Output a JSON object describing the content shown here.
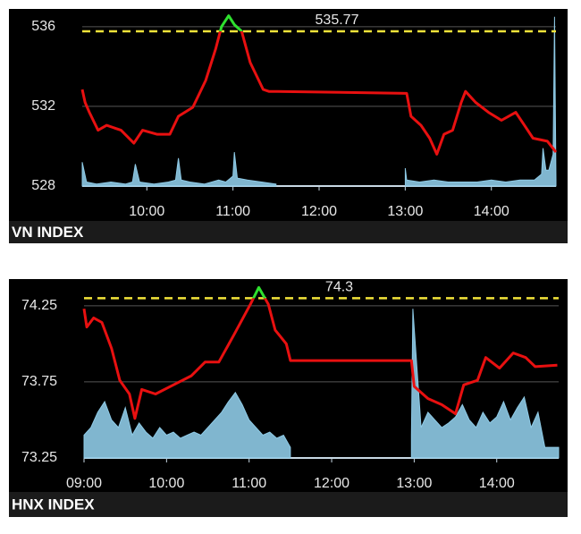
{
  "chart_data": [
    {
      "type": "line",
      "title": "VN INDEX",
      "reference": 535.77,
      "reference_color": "#f2e33a",
      "xlim": [
        555,
        885
      ],
      "xticks": [
        {
          "value": 600,
          "label": "10:00"
        },
        {
          "value": 660,
          "label": "11:00"
        },
        {
          "value": 720,
          "label": "12:00"
        },
        {
          "value": 780,
          "label": "13:00"
        },
        {
          "value": 840,
          "label": "14:00"
        }
      ],
      "ylim": [
        528,
        536.8
      ],
      "yticks": [
        528,
        532,
        536
      ],
      "grid": true,
      "series": [
        {
          "style": "area",
          "color": "#8ecae6",
          "x": [
            555,
            558,
            565,
            575,
            585,
            590,
            592,
            595,
            605,
            615,
            620,
            622,
            624,
            630,
            640,
            650,
            655,
            660,
            661,
            663,
            670,
            680,
            690,
            700,
            780,
            781,
            790,
            800,
            810,
            820,
            830,
            840,
            850,
            860,
            870,
            875,
            876,
            878,
            880,
            883,
            884,
            885
          ],
          "values": [
            529.2,
            528.2,
            528.1,
            528.2,
            528.1,
            528.2,
            529.1,
            528.2,
            528.1,
            528.2,
            528.3,
            529.4,
            528.3,
            528.2,
            528.1,
            528.3,
            528.2,
            528.5,
            529.7,
            528.4,
            528.3,
            528.2,
            528.1,
            null,
            528.9,
            528.3,
            528.2,
            528.3,
            528.2,
            528.2,
            528.2,
            528.3,
            528.2,
            528.3,
            528.3,
            528.6,
            529.9,
            528.8,
            528.8,
            529.6,
            536.5,
            528.3
          ]
        },
        {
          "style": "line",
          "color": "#e81010",
          "above_color": "#2ee02e",
          "x": [
            555,
            557,
            560,
            566,
            572,
            582,
            591,
            597,
            607,
            616,
            622,
            632,
            641,
            648,
            652,
            657,
            661,
            666,
            672,
            681,
            685,
            691,
            781,
            784,
            791,
            797,
            802,
            807,
            813,
            819,
            822,
            829,
            838,
            847,
            857,
            863,
            869,
            879,
            885
          ],
          "values": [
            532.85,
            532.2,
            531.7,
            530.8,
            531.05,
            530.8,
            530.15,
            530.8,
            530.6,
            530.6,
            531.5,
            531.95,
            533.3,
            534.9,
            536.0,
            536.55,
            536.1,
            535.77,
            534.2,
            532.85,
            532.75,
            532.75,
            532.65,
            531.5,
            531.05,
            530.4,
            529.6,
            530.6,
            530.8,
            532.2,
            532.75,
            532.2,
            531.7,
            531.3,
            531.7,
            531.05,
            530.4,
            530.25,
            529.7
          ]
        }
      ]
    },
    {
      "type": "line",
      "title": "HNX INDEX",
      "reference": 74.3,
      "reference_color": "#f2e33a",
      "xlim": [
        540,
        885
      ],
      "xticks": [
        {
          "value": 540,
          "label": "09:00"
        },
        {
          "value": 600,
          "label": "10:00"
        },
        {
          "value": 660,
          "label": "11:00"
        },
        {
          "value": 720,
          "label": "12:00"
        },
        {
          "value": 780,
          "label": "13:00"
        },
        {
          "value": 840,
          "label": "14:00"
        }
      ],
      "ylim": [
        73.25,
        74.39
      ],
      "yticks": [
        73.25,
        73.75,
        74.25
      ],
      "grid": true,
      "series": [
        {
          "style": "area",
          "color": "#8ecae6",
          "x": [
            540,
            545,
            550,
            555,
            560,
            565,
            570,
            575,
            580,
            585,
            590,
            595,
            600,
            605,
            610,
            615,
            620,
            625,
            630,
            635,
            640,
            645,
            650,
            655,
            660,
            665,
            670,
            675,
            680,
            685,
            690,
            700,
            778,
            779,
            785,
            790,
            795,
            800,
            805,
            810,
            815,
            820,
            825,
            830,
            835,
            840,
            845,
            850,
            855,
            860,
            865,
            870,
            875,
            880,
            885
          ],
          "values": [
            73.4,
            73.45,
            73.55,
            73.62,
            73.5,
            73.45,
            73.58,
            73.4,
            73.48,
            73.42,
            73.38,
            73.45,
            73.4,
            73.42,
            73.38,
            73.4,
            73.42,
            73.4,
            73.45,
            73.5,
            73.55,
            73.62,
            73.68,
            73.6,
            73.5,
            73.45,
            73.4,
            73.42,
            73.38,
            73.4,
            73.32,
            null,
            73.4,
            74.23,
            73.45,
            73.55,
            73.5,
            73.45,
            73.48,
            73.52,
            73.6,
            73.5,
            73.45,
            73.55,
            73.48,
            73.52,
            73.62,
            73.5,
            73.58,
            73.65,
            73.45,
            73.55,
            73.32,
            73.32,
            73.32
          ]
        },
        {
          "style": "line",
          "color": "#e81010",
          "above_color": "#2ee02e",
          "x": [
            540,
            542,
            547,
            553,
            560,
            566,
            573,
            577,
            582,
            592,
            605,
            618,
            628,
            638,
            649,
            661,
            667,
            674,
            679,
            687,
            690,
            778,
            780,
            790,
            800,
            810,
            816,
            826,
            832,
            842,
            852,
            861,
            868,
            884
          ],
          "values": [
            74.23,
            74.11,
            74.17,
            74.14,
            73.97,
            73.76,
            73.67,
            73.51,
            73.7,
            73.67,
            73.73,
            73.79,
            73.88,
            73.88,
            74.06,
            74.26,
            74.37,
            74.26,
            74.09,
            74.0,
            73.89,
            73.89,
            73.72,
            73.64,
            73.6,
            73.54,
            73.73,
            73.76,
            73.91,
            73.84,
            73.94,
            73.91,
            73.85,
            73.86
          ]
        }
      ]
    }
  ]
}
